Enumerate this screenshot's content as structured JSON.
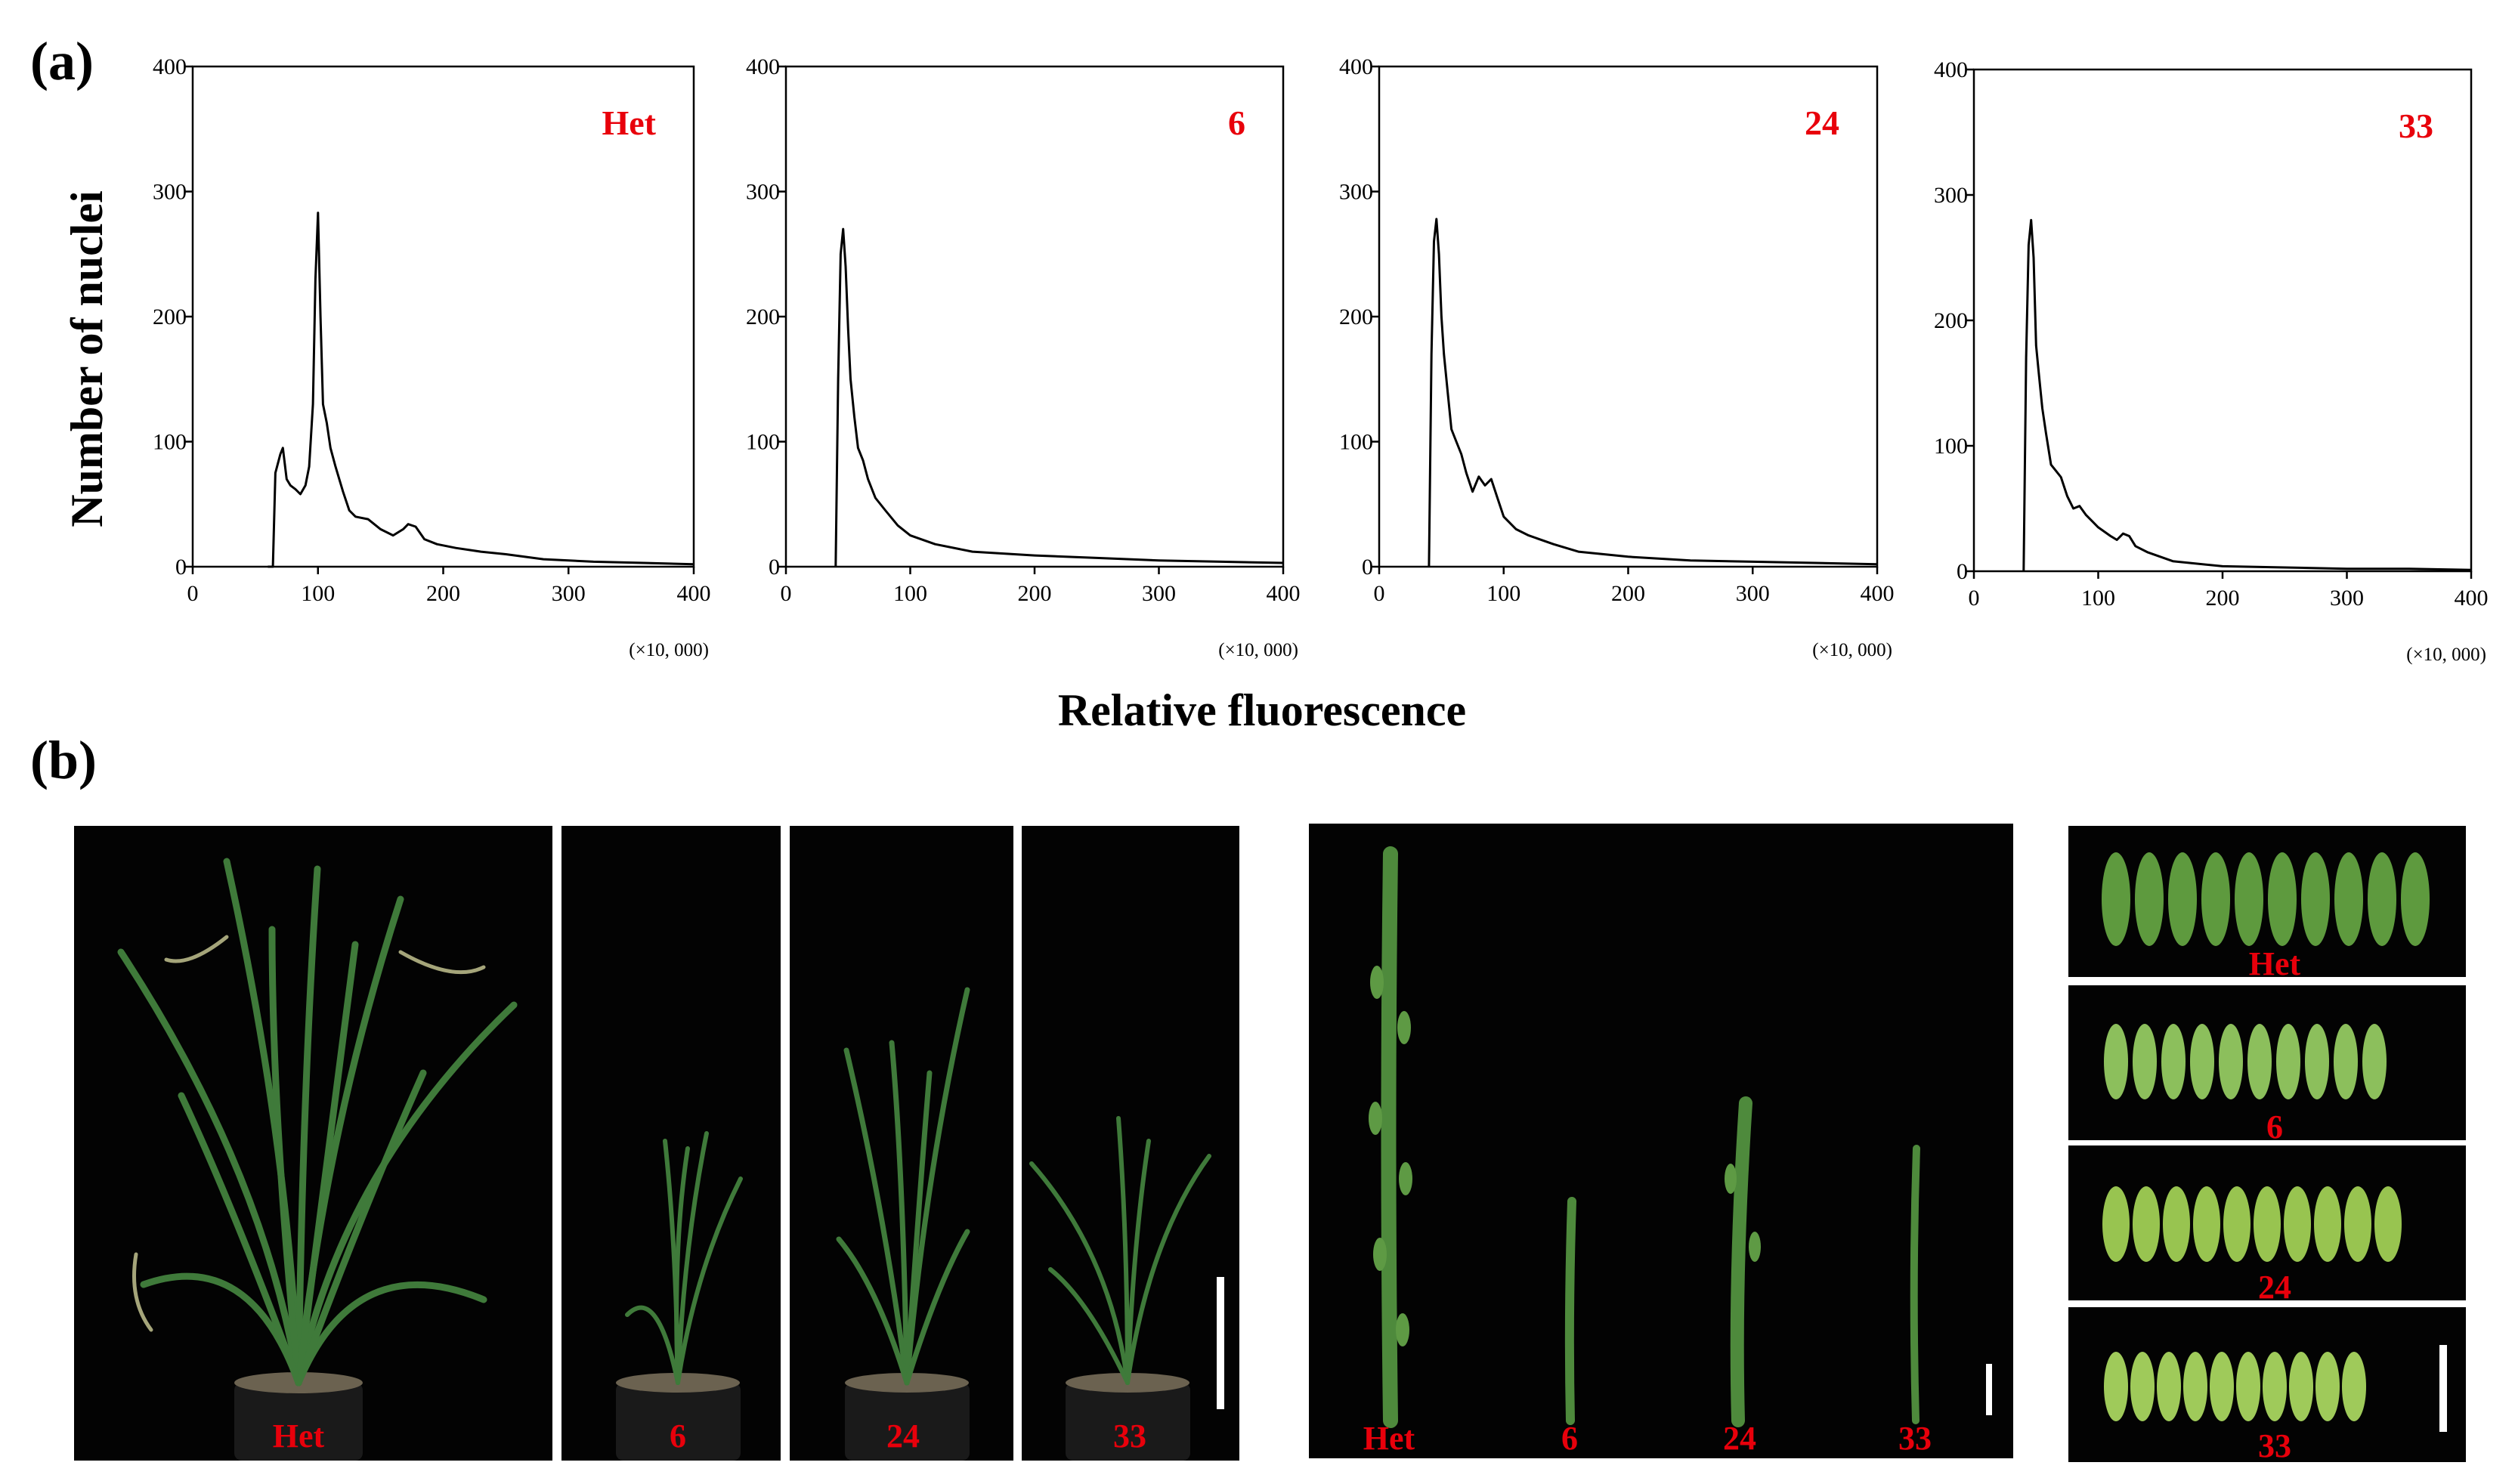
{
  "figure": {
    "panel_a_label": "(a)",
    "panel_b_label": "(b)",
    "y_axis_title": "Number of nuclei",
    "x_axis_title": "Relative fluorescence",
    "x_multiplier": "(×10, 000)"
  },
  "colors": {
    "line": "#000000",
    "label_red": "#e8000b",
    "photo_bg": "#030303",
    "plant_green": "#3f7a3a",
    "seed_green": "#7fb24a",
    "scale_bar": "#ffffff"
  },
  "chart_data": [
    {
      "type": "line",
      "title": "Het",
      "xlabel": "Relative fluorescence",
      "ylabel": "Number of nuclei",
      "xlim": [
        0,
        400
      ],
      "ylim": [
        0,
        400
      ],
      "xticks": [
        0,
        100,
        200,
        300,
        400
      ],
      "yticks": [
        0,
        100,
        200,
        300,
        400
      ],
      "x": [
        60,
        64,
        66,
        70,
        72,
        75,
        78,
        82,
        86,
        90,
        93,
        96,
        98,
        100,
        102,
        104,
        107,
        110,
        114,
        120,
        125,
        130,
        140,
        150,
        160,
        168,
        172,
        178,
        185,
        195,
        210,
        230,
        250,
        280,
        320,
        360,
        400
      ],
      "values": [
        0,
        0,
        75,
        90,
        95,
        70,
        65,
        62,
        58,
        65,
        80,
        130,
        230,
        283,
        200,
        130,
        115,
        95,
        80,
        60,
        45,
        40,
        38,
        30,
        25,
        30,
        34,
        32,
        22,
        18,
        15,
        12,
        10,
        6,
        4,
        3,
        2
      ]
    },
    {
      "type": "line",
      "title": "6",
      "xlabel": "Relative fluorescence",
      "ylabel": "Number of nuclei",
      "xlim": [
        0,
        400
      ],
      "ylim": [
        0,
        400
      ],
      "xticks": [
        0,
        100,
        200,
        300,
        400
      ],
      "yticks": [
        0,
        100,
        200,
        300,
        400
      ],
      "x": [
        40,
        42,
        44,
        46,
        48,
        50,
        52,
        55,
        58,
        62,
        66,
        72,
        80,
        90,
        100,
        120,
        150,
        200,
        250,
        300,
        350,
        400
      ],
      "values": [
        0,
        150,
        250,
        270,
        240,
        190,
        150,
        120,
        95,
        85,
        70,
        55,
        45,
        33,
        25,
        18,
        12,
        9,
        7,
        5,
        4,
        3
      ]
    },
    {
      "type": "line",
      "title": "24",
      "xlabel": "Relative fluorescence",
      "ylabel": "Number of nuclei",
      "xlim": [
        0,
        400
      ],
      "ylim": [
        0,
        400
      ],
      "xticks": [
        0,
        100,
        200,
        300,
        400
      ],
      "yticks": [
        0,
        100,
        200,
        300,
        400
      ],
      "x": [
        40,
        42,
        44,
        46,
        48,
        50,
        52,
        55,
        58,
        62,
        66,
        70,
        75,
        80,
        85,
        90,
        95,
        100,
        110,
        120,
        140,
        160,
        200,
        250,
        300,
        350,
        400
      ],
      "values": [
        0,
        170,
        260,
        278,
        250,
        200,
        170,
        140,
        110,
        100,
        90,
        75,
        60,
        72,
        65,
        70,
        55,
        40,
        30,
        25,
        18,
        12,
        8,
        5,
        4,
        3,
        2
      ]
    },
    {
      "type": "line",
      "title": "33",
      "xlabel": "Relative fluorescence",
      "ylabel": "Number of nuclei",
      "xlim": [
        0,
        400
      ],
      "ylim": [
        0,
        400
      ],
      "xticks": [
        0,
        100,
        200,
        300,
        400
      ],
      "yticks": [
        0,
        100,
        200,
        300,
        400
      ],
      "x": [
        40,
        42,
        44,
        46,
        48,
        50,
        52,
        55,
        58,
        62,
        66,
        70,
        75,
        80,
        85,
        90,
        95,
        100,
        110,
        115,
        120,
        125,
        130,
        140,
        160,
        200,
        250,
        300,
        350,
        400
      ],
      "values": [
        0,
        170,
        260,
        280,
        250,
        180,
        160,
        130,
        110,
        85,
        80,
        75,
        60,
        50,
        52,
        45,
        40,
        35,
        28,
        25,
        30,
        28,
        20,
        15,
        8,
        4,
        3,
        2,
        2,
        1
      ]
    }
  ],
  "photos": {
    "plants": [
      "Het",
      "6",
      "24",
      "33"
    ],
    "panicles": [
      "Het",
      "6",
      "24",
      "33"
    ],
    "seeds": [
      "Het",
      "6",
      "24",
      "33"
    ]
  }
}
